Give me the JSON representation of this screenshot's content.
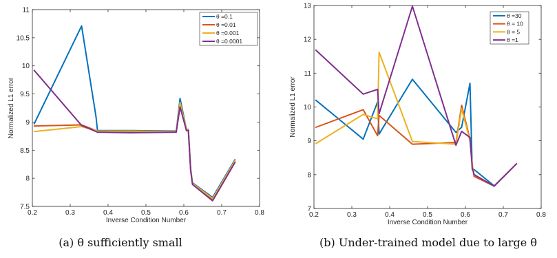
{
  "chart_data": [
    {
      "type": "line",
      "title": "",
      "xlabel": "Inverse Condition Number",
      "ylabel": "Normalized L1 error",
      "xlim": [
        0.2,
        0.8
      ],
      "ylim": [
        7.5,
        11
      ],
      "xticks": [
        "0.2",
        "0.3",
        "0.4",
        "0.5",
        "0.6",
        "0.7",
        "0.8"
      ],
      "yticks": [
        "7.5",
        "8",
        "8.5",
        "9",
        "9.5",
        "10",
        "10.5",
        "11"
      ],
      "legend_position": "top-right",
      "caption": "(a) θ sufficiently small",
      "series": [
        {
          "name": "θ =0.1",
          "color": "#0072BD",
          "x": [
            0.205,
            0.33,
            0.368,
            0.372,
            0.46,
            0.58,
            0.59,
            0.607,
            0.612,
            0.618,
            0.623,
            0.676,
            0.735
          ],
          "y": [
            8.97,
            10.71,
            9.1,
            8.85,
            8.85,
            8.84,
            9.42,
            8.87,
            8.87,
            8.17,
            7.92,
            7.66,
            8.33
          ]
        },
        {
          "name": "θ =0.01",
          "color": "#D95319",
          "x": [
            0.205,
            0.33,
            0.372,
            0.46,
            0.58,
            0.59,
            0.607,
            0.612,
            0.618,
            0.623,
            0.676,
            0.735
          ],
          "y": [
            8.93,
            8.95,
            8.84,
            8.83,
            8.83,
            9.3,
            8.85,
            8.85,
            8.15,
            7.9,
            7.62,
            8.3
          ]
        },
        {
          "name": "θ =0.001",
          "color": "#EDB120",
          "x": [
            0.205,
            0.33,
            0.372,
            0.46,
            0.58,
            0.59,
            0.607,
            0.612,
            0.618,
            0.623,
            0.676,
            0.735
          ],
          "y": [
            8.83,
            8.92,
            8.84,
            8.84,
            8.83,
            9.35,
            8.87,
            8.86,
            8.16,
            7.91,
            7.64,
            8.31
          ]
        },
        {
          "name": "θ =0.0001",
          "color": "#7E2F8E",
          "x": [
            0.205,
            0.33,
            0.372,
            0.46,
            0.58,
            0.59,
            0.607,
            0.612,
            0.618,
            0.623,
            0.676,
            0.735
          ],
          "y": [
            9.92,
            8.94,
            8.82,
            8.81,
            8.82,
            9.27,
            8.85,
            8.85,
            8.14,
            7.89,
            7.6,
            8.28
          ]
        }
      ]
    },
    {
      "type": "line",
      "title": "",
      "xlabel": "Inverse Condition Number",
      "ylabel": "Normalized L1 error",
      "xlim": [
        0.2,
        0.8
      ],
      "ylim": [
        7,
        13
      ],
      "xticks": [
        "0.2",
        "0.3",
        "0.4",
        "0.5",
        "0.6",
        "0.7",
        "0.8"
      ],
      "yticks": [
        "7",
        "8",
        "9",
        "10",
        "11",
        "12",
        "13"
      ],
      "legend_position": "top-right",
      "caption": "(b) Under-trained model due to large θ",
      "series": [
        {
          "name": "θ =30",
          "color": "#0072BD",
          "x": [
            0.205,
            0.33,
            0.368,
            0.372,
            0.46,
            0.575,
            0.59,
            0.612,
            0.618,
            0.623,
            0.676,
            0.735
          ],
          "y": [
            10.2,
            9.05,
            10.15,
            9.2,
            10.82,
            9.25,
            9.4,
            10.7,
            8.15,
            8.15,
            7.67,
            8.32
          ]
        },
        {
          "name": "θ = 10",
          "color": "#D95319",
          "x": [
            0.205,
            0.33,
            0.368,
            0.372,
            0.46,
            0.575,
            0.59,
            0.612,
            0.618,
            0.623,
            0.676,
            0.735
          ],
          "y": [
            9.4,
            9.92,
            9.15,
            9.75,
            8.9,
            8.95,
            10.05,
            9.05,
            8.3,
            7.95,
            7.66,
            8.32
          ]
        },
        {
          "name": "θ = 5",
          "color": "#EDB120",
          "x": [
            0.205,
            0.33,
            0.368,
            0.372,
            0.46,
            0.575,
            0.59,
            0.612,
            0.618,
            0.623,
            0.676,
            0.735
          ],
          "y": [
            8.92,
            9.78,
            9.65,
            11.62,
            8.98,
            8.9,
            9.95,
            9.0,
            8.3,
            8.0,
            7.66,
            8.32
          ]
        },
        {
          "name": "θ =1",
          "color": "#7E2F8E",
          "x": [
            0.205,
            0.33,
            0.368,
            0.372,
            0.46,
            0.575,
            0.59,
            0.612,
            0.618,
            0.623,
            0.676,
            0.735
          ],
          "y": [
            11.68,
            10.38,
            10.52,
            9.8,
            12.98,
            8.87,
            9.28,
            9.1,
            8.2,
            8.0,
            7.66,
            8.32
          ]
        }
      ]
    }
  ]
}
